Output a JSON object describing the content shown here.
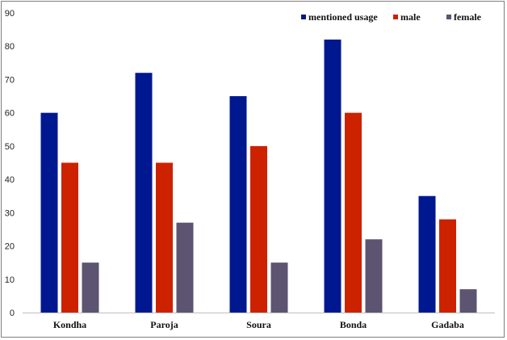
{
  "chart_data": {
    "type": "bar",
    "categories": [
      "Kondha",
      "Paroja",
      "Soura",
      "Bonda",
      "Gadaba"
    ],
    "series": [
      {
        "name": "mentioned usage",
        "color": "#00188f",
        "values": [
          60,
          72,
          65,
          82,
          35
        ]
      },
      {
        "name": "male",
        "color": "#cc2200",
        "values": [
          45,
          45,
          50,
          60,
          28
        ]
      },
      {
        "name": "female",
        "color": "#5c5470",
        "values": [
          15,
          27,
          15,
          22,
          7
        ]
      }
    ],
    "ylim": [
      0,
      90
    ],
    "yticks": [
      "0",
      "10",
      "20",
      "30",
      "40",
      "50",
      "60",
      "70",
      "80",
      "90"
    ],
    "grid": false,
    "legend_position": "top-right"
  }
}
